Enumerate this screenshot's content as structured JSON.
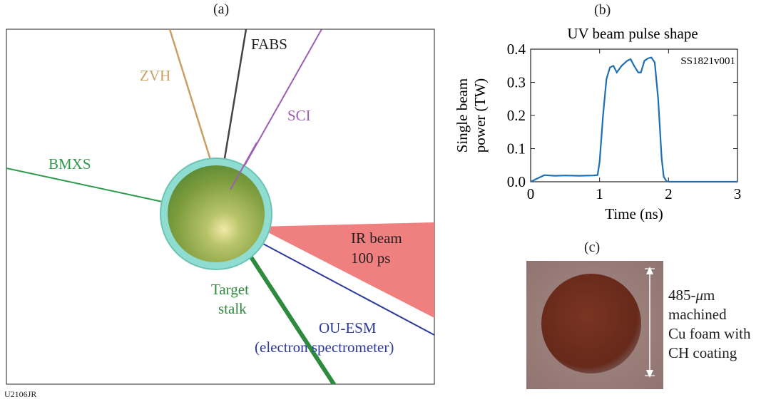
{
  "figure_id": "U2106JR",
  "panel_a": {
    "label": "(a)",
    "diagnostics": {
      "zvh": "ZVH",
      "fabs": "FABS",
      "sci": "SCI",
      "bmxs": "BMXS",
      "ir_beam_line1": "IR beam",
      "ir_beam_line2": "100 ps",
      "stalk_line1": "Target",
      "stalk_line2": "stalk",
      "ouesm_line1": "OU-ESM",
      "ouesm_line2": "(electron spectrometer)"
    },
    "colors": {
      "zvh": "#c8a064",
      "fabs": "#231f20",
      "sci": "#9b5fb4",
      "bmxs": "#2e9b4a",
      "ir_beam": "#f08080",
      "stalk": "#2e8b3e",
      "ouesm": "#2e3a9b",
      "target_ring": "#7fd8c8",
      "target_core": "#8aa840"
    }
  },
  "panel_b": {
    "label": "(b)",
    "chart_data": {
      "type": "line",
      "title": "UV beam pulse shape",
      "xlabel": "Time (ns)",
      "ylabel_line1": "Single beam",
      "ylabel_line2": "power (TW)",
      "annotation": "SS1821v001",
      "xlim": [
        0,
        3
      ],
      "ylim": [
        0,
        0.4
      ],
      "xticks": [
        "0",
        "1",
        "2",
        "3"
      ],
      "yticks": [
        "0.0",
        "0.1",
        "0.2",
        "0.3",
        "0.4"
      ],
      "series": [
        {
          "color": "#1f6fb4",
          "x": [
            0,
            0.1,
            0.2,
            0.35,
            0.5,
            0.7,
            0.9,
            0.97,
            1.0,
            1.05,
            1.1,
            1.15,
            1.2,
            1.25,
            1.32,
            1.4,
            1.45,
            1.5,
            1.56,
            1.6,
            1.65,
            1.7,
            1.75,
            1.8,
            1.85,
            1.9,
            1.93,
            1.97,
            2.0,
            2.5,
            3.0
          ],
          "y": [
            0.0,
            0.01,
            0.02,
            0.018,
            0.019,
            0.018,
            0.019,
            0.02,
            0.06,
            0.2,
            0.31,
            0.345,
            0.35,
            0.33,
            0.35,
            0.365,
            0.37,
            0.35,
            0.33,
            0.33,
            0.365,
            0.372,
            0.375,
            0.36,
            0.25,
            0.07,
            0.015,
            0.002,
            0.0,
            0.0,
            0.0
          ]
        }
      ]
    }
  },
  "panel_c": {
    "label": "(c)",
    "caption_line1": "485-",
    "caption_mu": "μ",
    "caption_line1b": "m",
    "caption_line2": "machined",
    "caption_line3": "Cu foam with",
    "caption_line4": "CH coating",
    "colors": {
      "background": "#a0837e",
      "sphere": "#6e2d1e"
    }
  }
}
